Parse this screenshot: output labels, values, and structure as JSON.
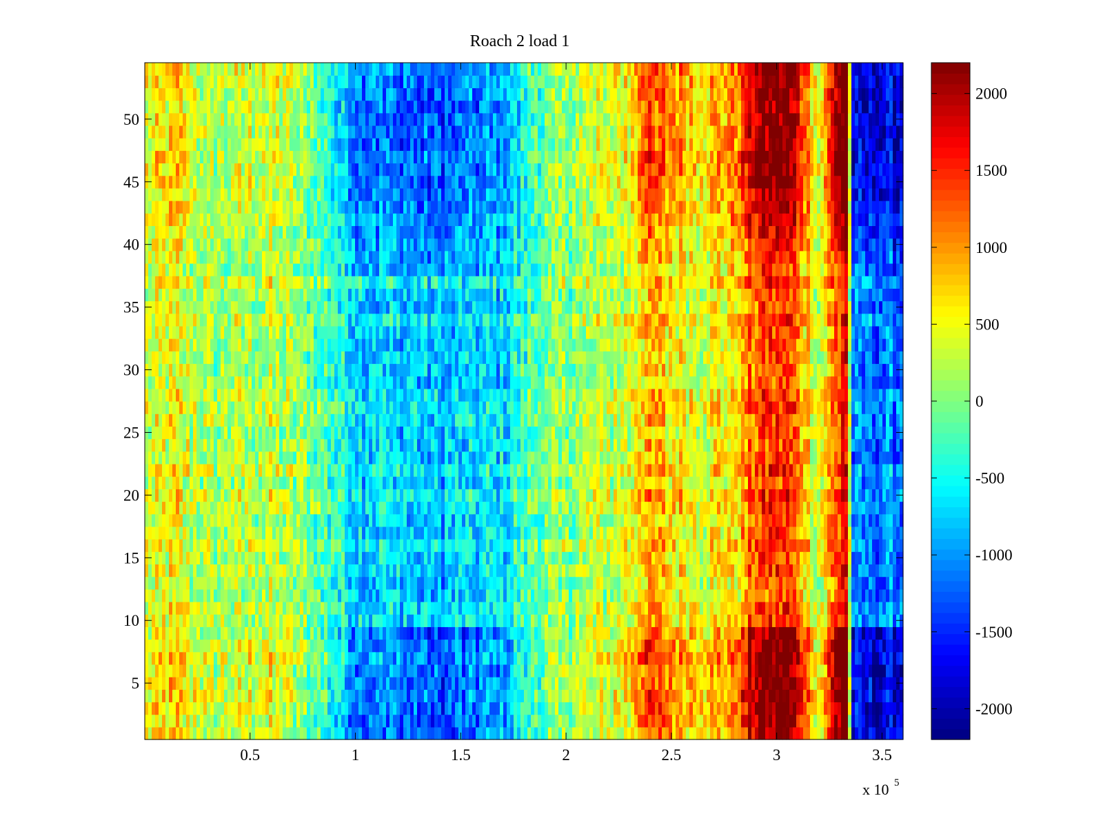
{
  "chart_data": {
    "type": "heatmap",
    "title": "Roach 2 load 1",
    "xlabel": "",
    "ylabel": "",
    "x_multiplier_label": "x 10",
    "x_multiplier_exponent": "5",
    "xlim": [
      0,
      3.6
    ],
    "ylim": [
      0.5,
      54.5
    ],
    "rows": 54,
    "x_ticks": [
      0.5,
      1,
      1.5,
      2,
      2.5,
      3,
      3.5
    ],
    "x_tick_labels": [
      "0.5",
      "1",
      "1.5",
      "2",
      "2.5",
      "3",
      "3.5"
    ],
    "y_ticks": [
      5,
      10,
      15,
      20,
      25,
      30,
      35,
      40,
      45,
      50
    ],
    "y_tick_labels": [
      "5",
      "10",
      "15",
      "20",
      "25",
      "30",
      "35",
      "40",
      "45",
      "50"
    ],
    "colorbar": {
      "colormap": "jet",
      "clim": [
        -2200,
        2200
      ],
      "ticks": [
        2000,
        1500,
        1000,
        500,
        0,
        -500,
        -1000,
        -1500,
        -2000
      ],
      "tick_labels": [
        "2000",
        "1500",
        "1000",
        "500",
        "0",
        "-500",
        "-1000",
        "-1500",
        "-2000"
      ]
    },
    "column_profile": {
      "description": "approximate mean value per x-region (x in units of 1e5); rows near y<9 and y>38 are amplified",
      "x": [
        0.0,
        0.15,
        0.3,
        0.6,
        0.8,
        1.0,
        1.4,
        1.7,
        1.85,
        2.0,
        2.3,
        2.37,
        2.5,
        2.65,
        2.8,
        2.9,
        3.05,
        3.13,
        3.2,
        3.33,
        3.36,
        3.6
      ],
      "values": [
        300,
        500,
        150,
        300,
        0,
        -600,
        -800,
        -600,
        -100,
        100,
        400,
        900,
        700,
        500,
        700,
        1300,
        1500,
        900,
        300,
        1800,
        -1100,
        -1100
      ]
    },
    "edge_rows": {
      "bottom_rows_max": 9,
      "top_rows_min": 38,
      "gain": 1.6
    }
  }
}
